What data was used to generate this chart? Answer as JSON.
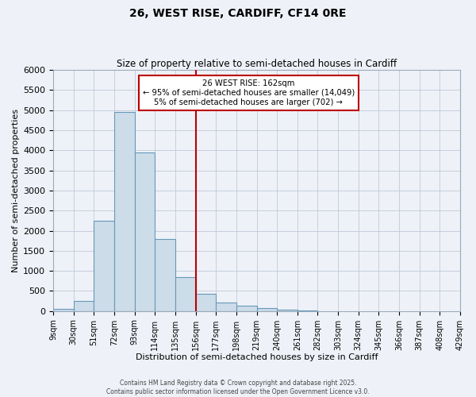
{
  "title": "26, WEST RISE, CARDIFF, CF14 0RE",
  "subtitle": "Size of property relative to semi-detached houses in Cardiff",
  "xlabel": "Distribution of semi-detached houses by size in Cardiff",
  "ylabel": "Number of semi-detached properties",
  "bin_labels": [
    "9sqm",
    "30sqm",
    "51sqm",
    "72sqm",
    "93sqm",
    "114sqm",
    "135sqm",
    "156sqm",
    "177sqm",
    "198sqm",
    "219sqm",
    "240sqm",
    "261sqm",
    "282sqm",
    "303sqm",
    "324sqm",
    "345sqm",
    "366sqm",
    "387sqm",
    "408sqm",
    "429sqm"
  ],
  "bar_heights": [
    50,
    250,
    2250,
    4950,
    3950,
    1800,
    850,
    420,
    220,
    130,
    75,
    30,
    10,
    0,
    0,
    0,
    0,
    0,
    0,
    0
  ],
  "bar_color": "#ccdce8",
  "bar_edge_color": "#6699bb",
  "vline_color": "#bb0000",
  "annotation_title": "26 WEST RISE: 162sqm",
  "annotation_line1": "← 95% of semi-detached houses are smaller (14,049)",
  "annotation_line2": "5% of semi-detached houses are larger (702) →",
  "annotation_box_color": "#bb0000",
  "ylim": [
    0,
    6000
  ],
  "yticks": [
    0,
    500,
    1000,
    1500,
    2000,
    2500,
    3000,
    3500,
    4000,
    4500,
    5000,
    5500,
    6000
  ],
  "background_color": "#eef2f8",
  "grid_color": "#c0c8d8",
  "footer1": "Contains HM Land Registry data © Crown copyright and database right 2025.",
  "footer2": "Contains public sector information licensed under the Open Government Licence v3.0."
}
